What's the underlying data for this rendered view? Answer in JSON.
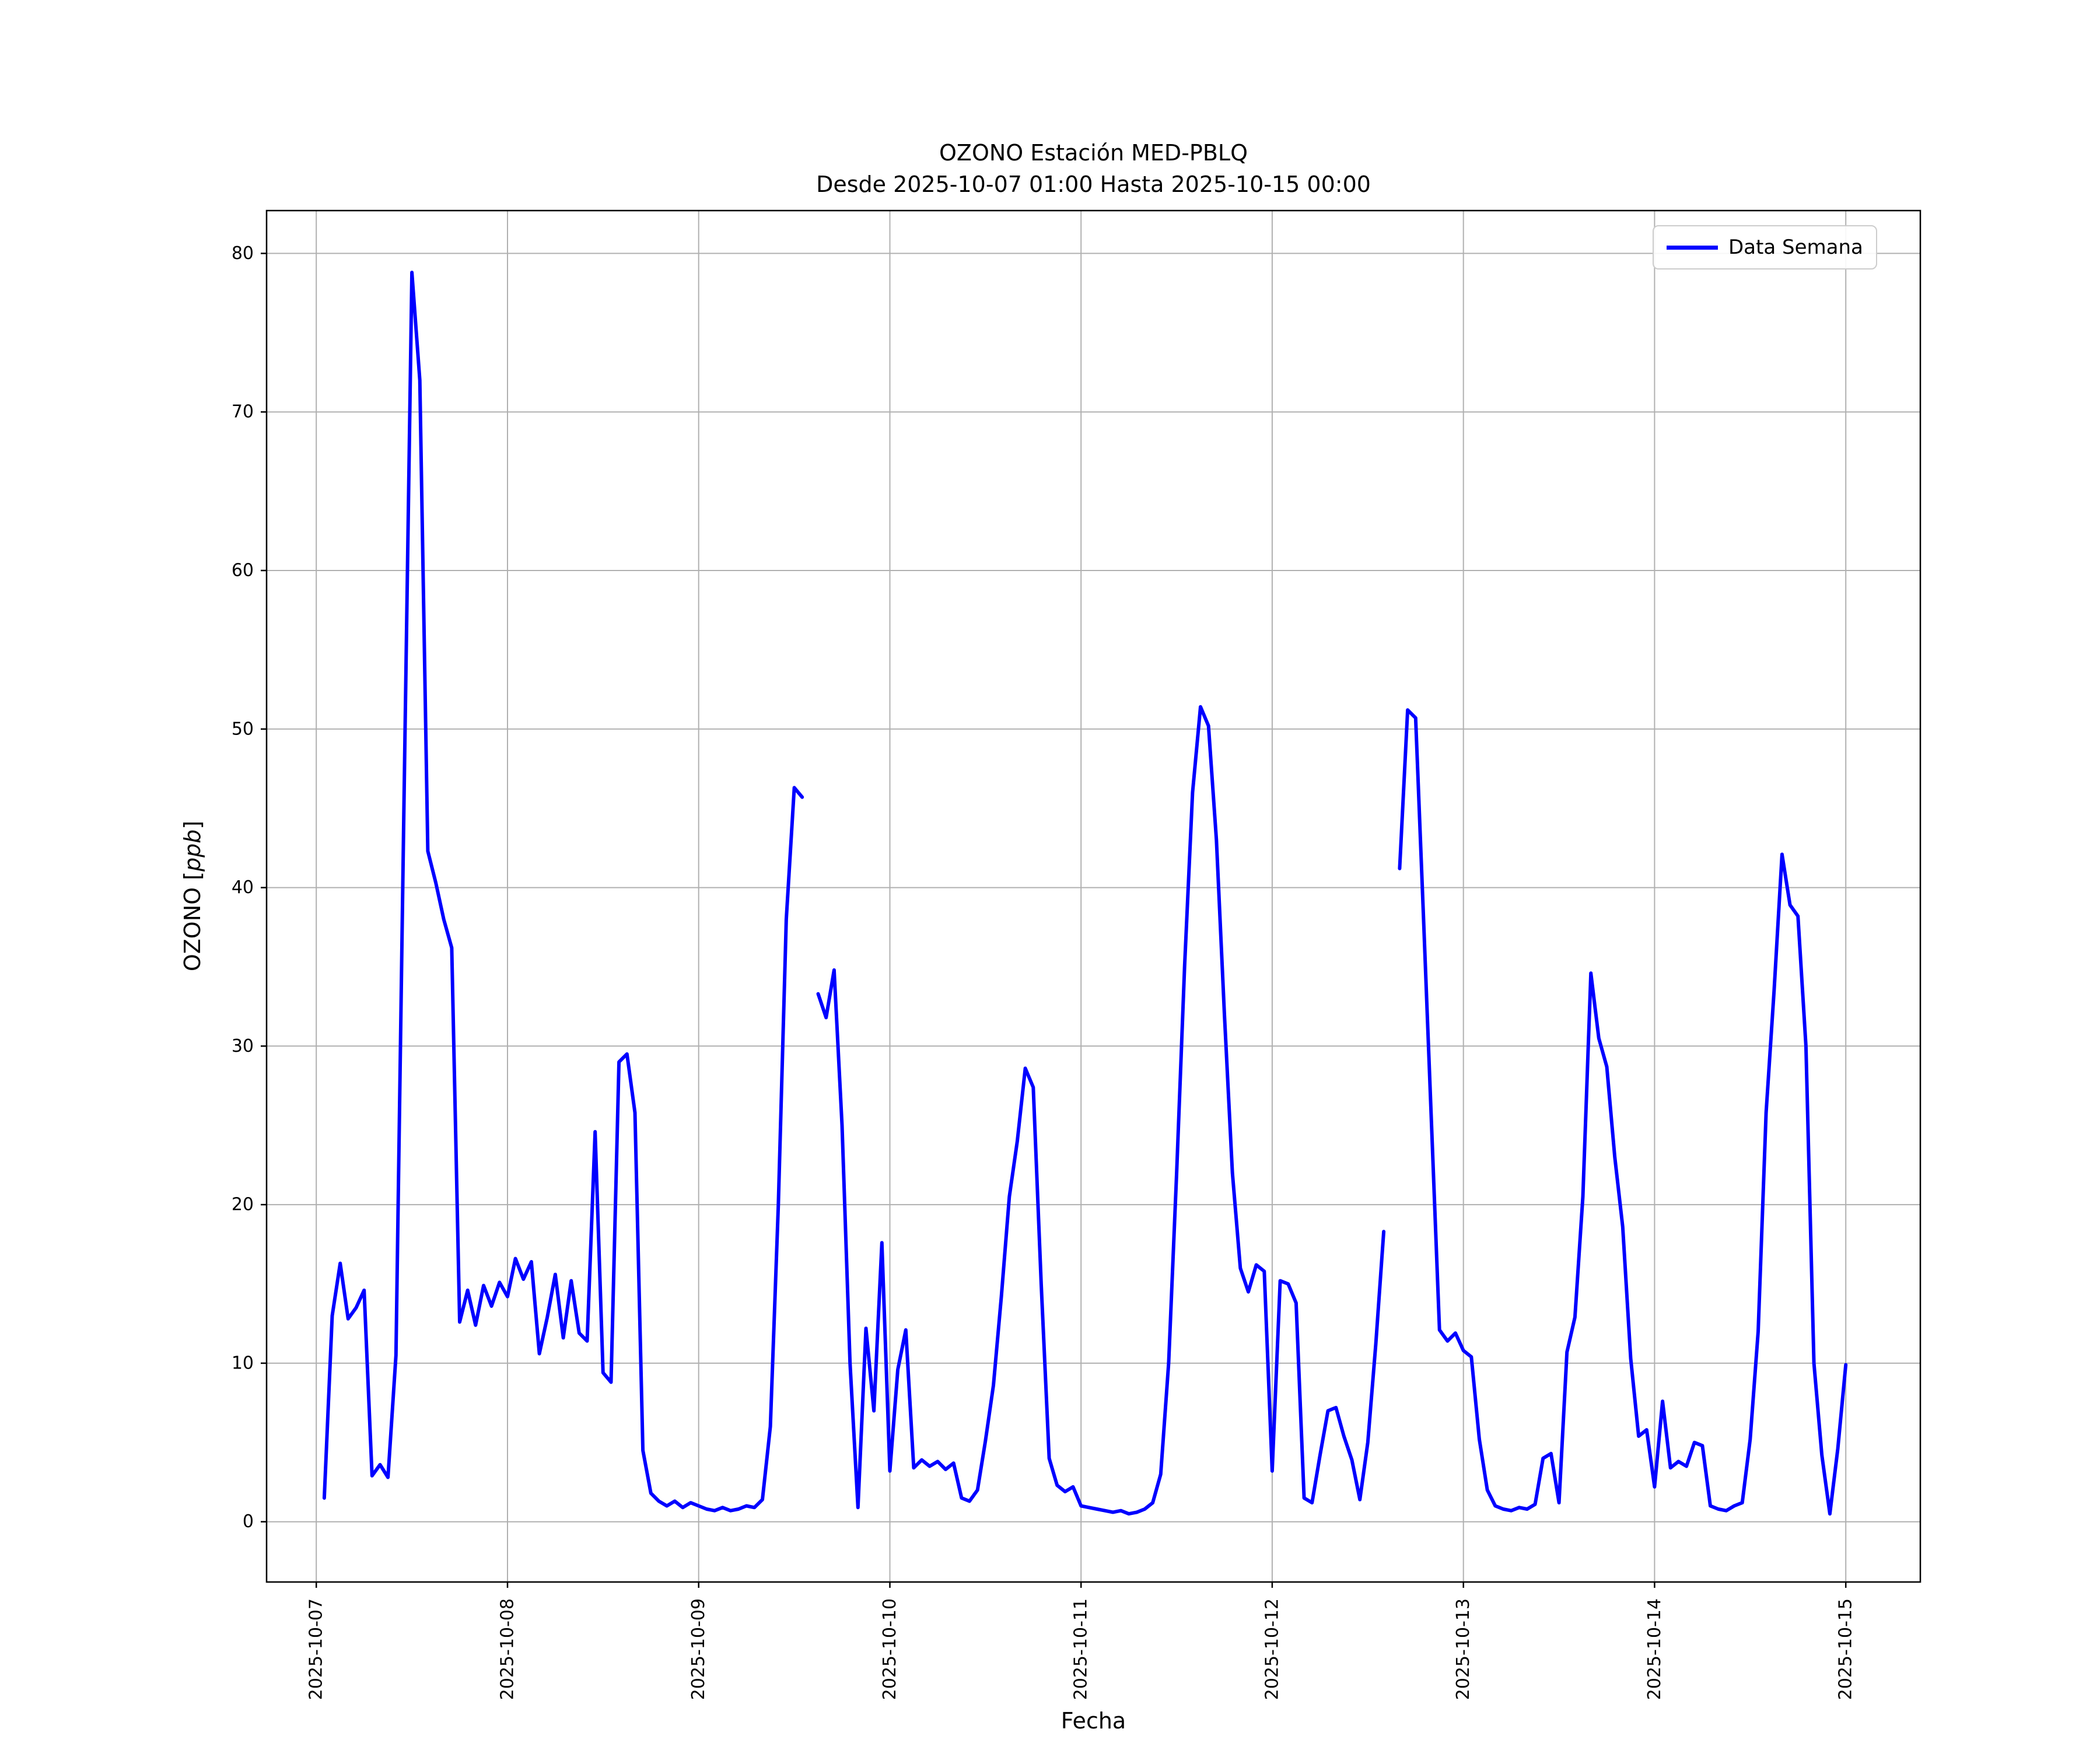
{
  "chart_data": {
    "type": "line",
    "title_line1": "OZONO Estación MED-PBLQ",
    "title_line2": "Desde 2025-10-07 01:00 Hasta 2025-10-15 00:00",
    "xlabel": "Fecha",
    "ylabel": {
      "prefix": "OZONO [",
      "italic": "ppb",
      "suffix": "]"
    },
    "ylabel_full": "OZONO [ppb]",
    "legend": {
      "label": "Data Semana",
      "position": "upper right"
    },
    "grid": true,
    "line_color": "#0000ff",
    "grid_color": "#b0b0b0",
    "spine_color": "#000000",
    "x_tick_labels": [
      "2025-10-07",
      "2025-10-08",
      "2025-10-09",
      "2025-10-10",
      "2025-10-11",
      "2025-10-12",
      "2025-10-13",
      "2025-10-14",
      "2025-10-15"
    ],
    "y_ticks": [
      0,
      10,
      20,
      30,
      40,
      50,
      60,
      70,
      80
    ],
    "xlim_days": [
      -0.26,
      8.39
    ],
    "ylim": [
      -3.8,
      82.7
    ],
    "series": [
      {
        "name": "Data Semana",
        "start": "2025-10-07 01:00",
        "end": "2025-10-15 00:00",
        "interval_hours": 1,
        "values": [
          1.5,
          13.0,
          16.3,
          12.8,
          13.5,
          14.6,
          2.9,
          3.6,
          2.8,
          10.5,
          45.0,
          78.8,
          72.0,
          42.3,
          40.3,
          38.0,
          36.2,
          12.6,
          14.6,
          12.4,
          14.9,
          13.6,
          15.1,
          14.2,
          16.6,
          15.3,
          16.4,
          10.6,
          12.9,
          15.6,
          11.6,
          15.2,
          11.9,
          11.4,
          24.6,
          9.4,
          8.8,
          29.0,
          29.5,
          25.8,
          4.5,
          1.8,
          1.3,
          1.0,
          1.3,
          0.9,
          1.2,
          1.0,
          0.8,
          0.7,
          0.9,
          0.7,
          0.8,
          1.0,
          0.9,
          1.4,
          6.0,
          20.0,
          38.0,
          46.3,
          45.7,
          null,
          33.3,
          31.8,
          34.8,
          25.0,
          10.0,
          0.9,
          12.2,
          7.0,
          17.6,
          3.2,
          9.6,
          12.1,
          3.4,
          3.9,
          3.5,
          3.8,
          3.3,
          3.7,
          1.5,
          1.3,
          2.0,
          5.1,
          8.6,
          14.2,
          20.5,
          24.0,
          28.6,
          27.4,
          15.0,
          4.0,
          2.3,
          1.9,
          2.2,
          1.0,
          0.9,
          0.8,
          0.7,
          0.6,
          0.7,
          0.5,
          0.6,
          0.8,
          1.2,
          3.0,
          10.0,
          22.0,
          35.0,
          46.0,
          51.4,
          50.2,
          43.0,
          32.0,
          22.0,
          16.0,
          14.5,
          16.2,
          15.8,
          3.2,
          15.2,
          15.0,
          13.8,
          1.5,
          1.2,
          4.2,
          7.0,
          7.2,
          5.4,
          3.9,
          1.4,
          5.0,
          11.2,
          18.3,
          null,
          41.2,
          51.2,
          50.7,
          38.0,
          25.0,
          12.1,
          11.4,
          11.9,
          10.8,
          10.4,
          5.2,
          2.0,
          1.0,
          0.8,
          0.7,
          0.9,
          0.8,
          1.1,
          4.0,
          4.3,
          1.2,
          10.7,
          12.9,
          20.5,
          34.6,
          30.5,
          28.7,
          23.0,
          18.6,
          10.3,
          5.4,
          5.8,
          2.2,
          7.6,
          3.4,
          3.8,
          3.5,
          5.0,
          4.8,
          1.0,
          0.8,
          0.7,
          1.0,
          1.2,
          5.2,
          12.0,
          25.8,
          33.5,
          42.1,
          38.9,
          38.2,
          30.0,
          10.0,
          4.2,
          0.5,
          4.6,
          9.9
        ]
      }
    ]
  }
}
